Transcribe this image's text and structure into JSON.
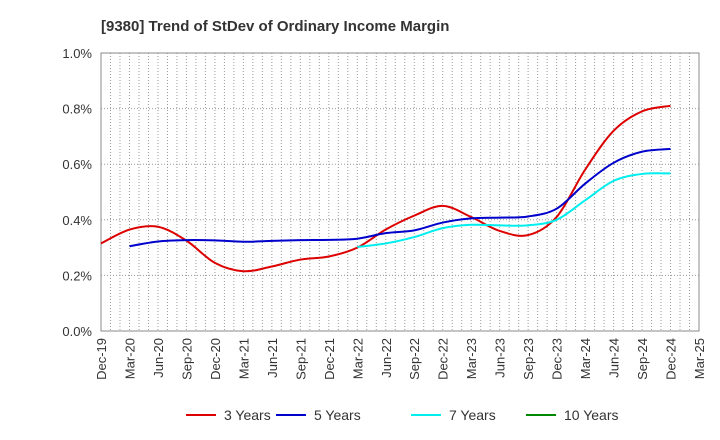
{
  "chart_data": {
    "type": "line",
    "title": "[9380]  Trend of StDev of Ordinary Income Margin",
    "xlabel": "",
    "ylabel": "",
    "ylim": [
      0,
      1.0
    ],
    "yticks": [
      "0.0%",
      "0.2%",
      "0.4%",
      "0.6%",
      "0.8%",
      "1.0%"
    ],
    "categories": [
      "Dec-19",
      "Mar-20",
      "Jun-20",
      "Sep-20",
      "Dec-20",
      "Mar-21",
      "Jun-21",
      "Sep-21",
      "Dec-21",
      "Mar-22",
      "Jun-22",
      "Sep-22",
      "Dec-22",
      "Mar-23",
      "Jun-23",
      "Sep-23",
      "Dec-23",
      "Mar-24",
      "Jun-24",
      "Sep-24",
      "Dec-24",
      "Mar-25"
    ],
    "grid": true,
    "legend_position": "bottom",
    "series": [
      {
        "name": "3 Years",
        "color": "#dd0000",
        "values": [
          0.315,
          0.365,
          0.375,
          0.325,
          0.245,
          0.215,
          0.232,
          0.257,
          0.268,
          0.3,
          0.365,
          0.415,
          0.45,
          0.41,
          0.36,
          0.345,
          0.41,
          0.58,
          0.72,
          0.79,
          0.81,
          null
        ]
      },
      {
        "name": "5 Years",
        "color": "#0000cc",
        "values": [
          null,
          0.305,
          0.322,
          0.327,
          0.326,
          0.321,
          0.324,
          0.327,
          0.328,
          0.332,
          0.352,
          0.362,
          0.39,
          0.405,
          0.408,
          0.412,
          0.44,
          0.53,
          0.605,
          0.645,
          0.655,
          null
        ]
      },
      {
        "name": "7 Years",
        "color": "#00eeee",
        "values": [
          null,
          null,
          null,
          null,
          null,
          null,
          null,
          null,
          null,
          0.302,
          0.315,
          0.338,
          0.37,
          0.382,
          0.38,
          0.38,
          0.4,
          0.47,
          0.54,
          0.565,
          0.567,
          null
        ]
      },
      {
        "name": "10 Years",
        "color": "#008800",
        "values": [
          null,
          null,
          null,
          null,
          null,
          null,
          null,
          null,
          null,
          null,
          null,
          null,
          null,
          null,
          null,
          null,
          null,
          null,
          null,
          null,
          null,
          null
        ]
      }
    ]
  }
}
